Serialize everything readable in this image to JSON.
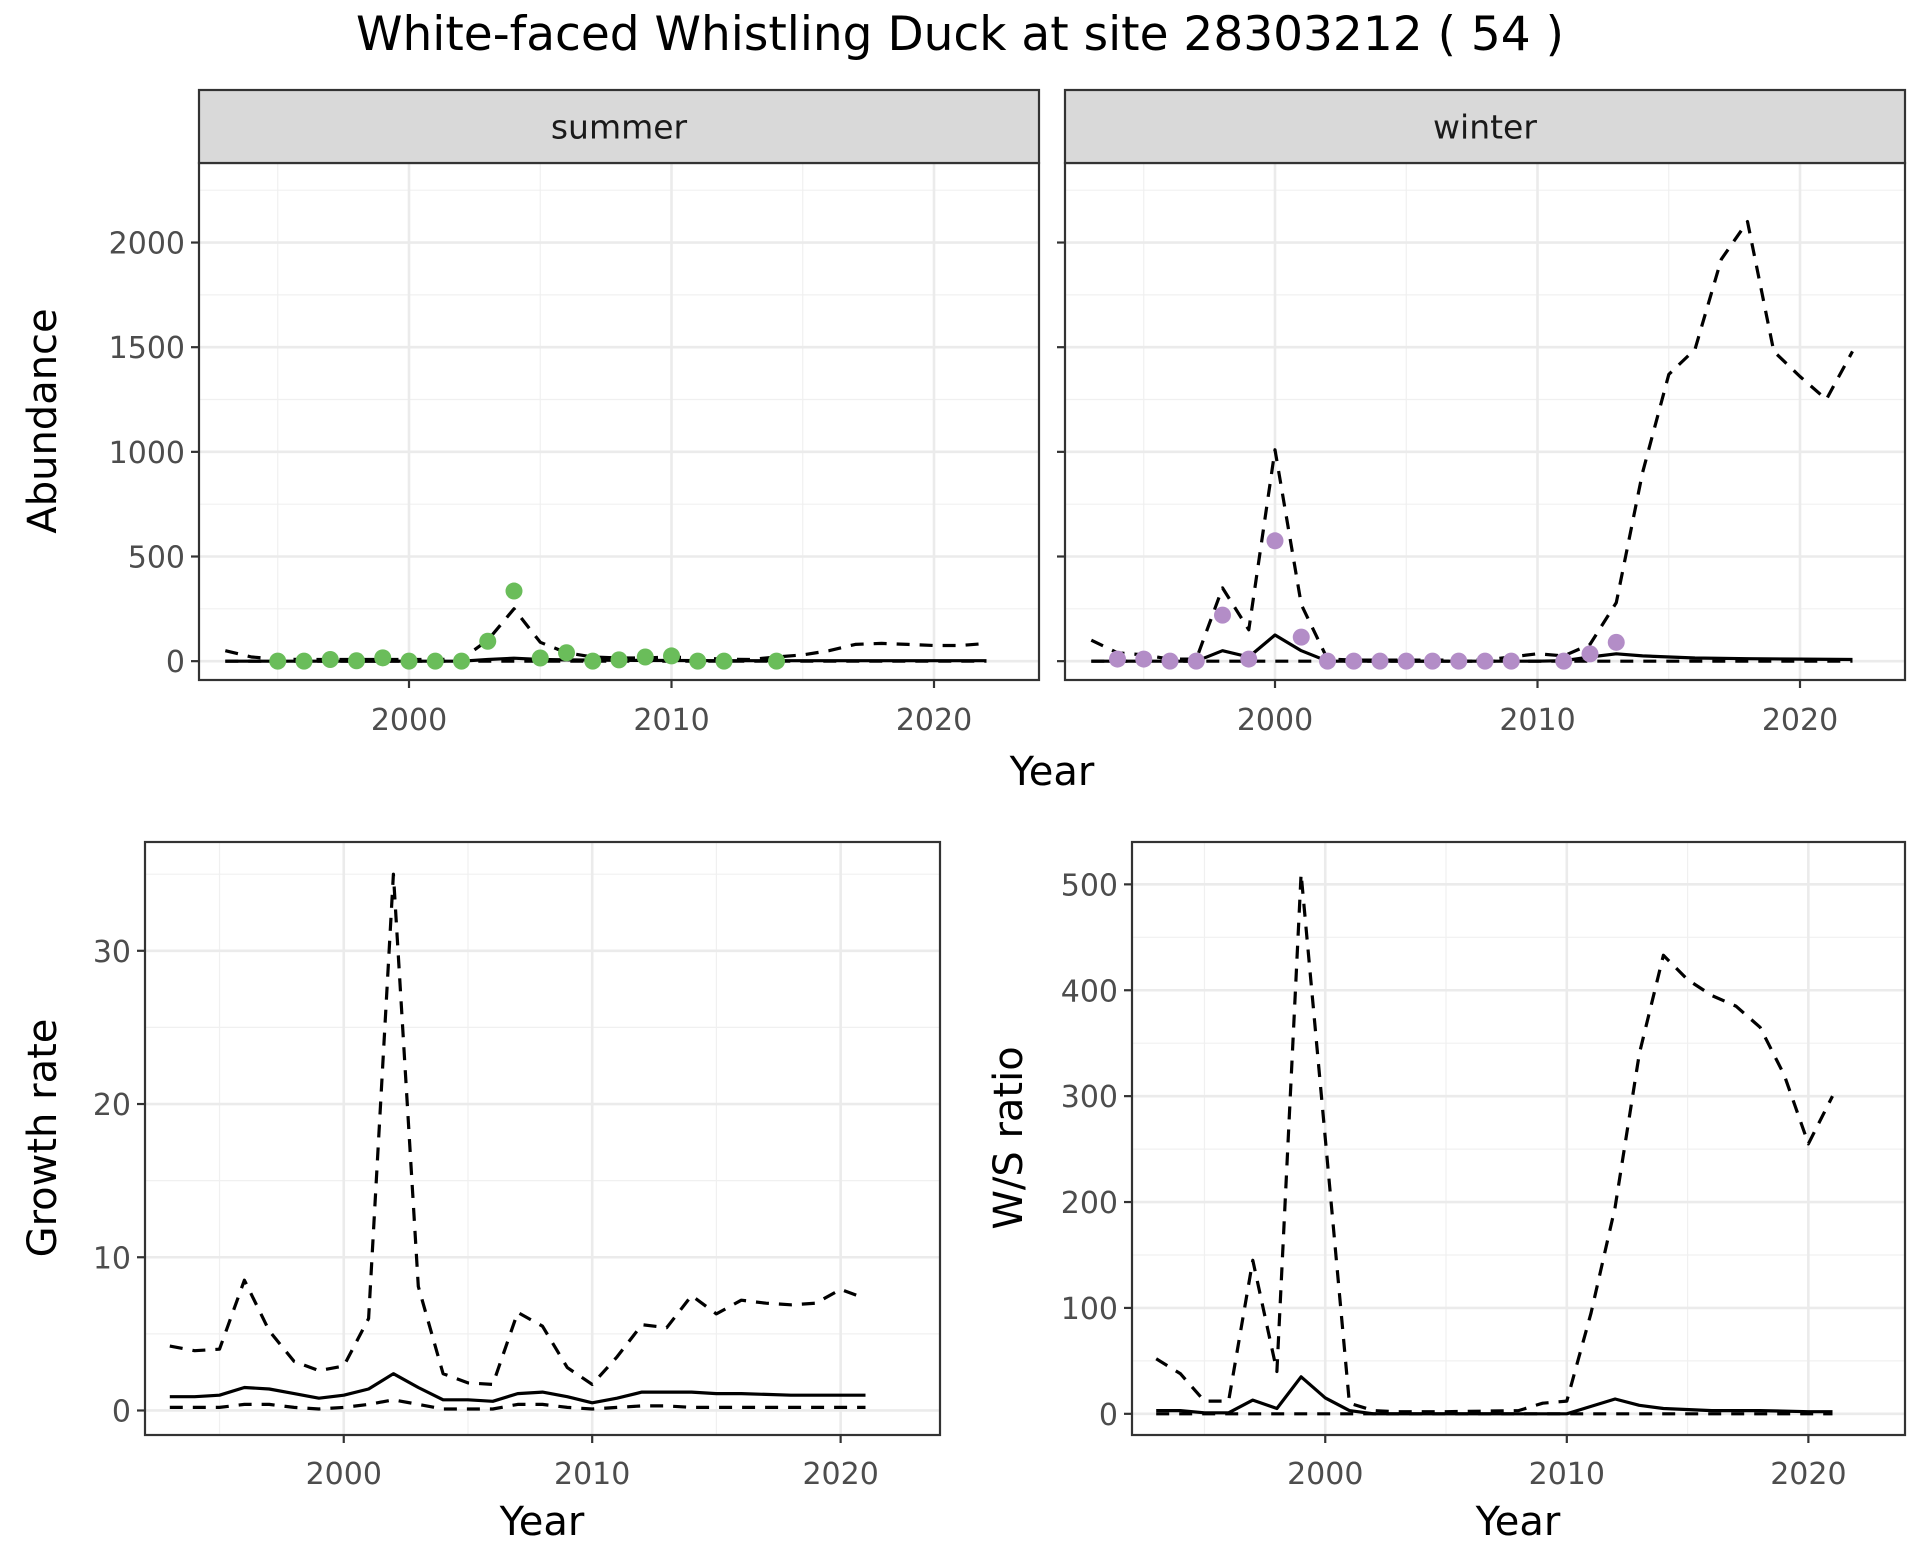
{
  "title": "White-faced Whistling Duck at site 28303212 ( 54 )",
  "chart_data": [
    {
      "type": "line",
      "panel": "summer",
      "xlabel": "Year",
      "ylabel": "Abundance",
      "xlim": [
        1992,
        2024
      ],
      "ylim": [
        -90,
        2380
      ],
      "x_ticks": [
        2000,
        2010,
        2020
      ],
      "y_ticks": [
        0,
        500,
        1000,
        1500,
        2000
      ],
      "grid": true,
      "point_color": "#6ABD5A",
      "series": [
        {
          "style": "solid",
          "x": [
            1993,
            1995,
            2000,
            2002,
            2003,
            2004,
            2005,
            2006,
            2008,
            2010,
            2012,
            2014,
            2016,
            2018,
            2020,
            2022
          ],
          "y": [
            0,
            0,
            0,
            0,
            8,
            14,
            8,
            6,
            4,
            3,
            2,
            2,
            2,
            2,
            2,
            2
          ]
        },
        {
          "style": "dashed",
          "x": [
            1993,
            1994,
            1995,
            1996,
            1997,
            1998,
            1999,
            2000,
            2001,
            2002,
            2003,
            2004,
            2005,
            2006,
            2007,
            2008,
            2009,
            2010,
            2011,
            2012,
            2013,
            2014,
            2015,
            2016,
            2017,
            2018,
            2019,
            2020,
            2021,
            2022
          ],
          "y": [
            50,
            20,
            10,
            8,
            8,
            8,
            8,
            8,
            8,
            10,
            100,
            250,
            90,
            40,
            20,
            15,
            15,
            20,
            15,
            10,
            8,
            20,
            30,
            50,
            80,
            85,
            80,
            75,
            75,
            85
          ]
        },
        {
          "style": "dashed",
          "x": [
            1993,
            2022
          ],
          "y": [
            0,
            0
          ]
        }
      ],
      "points": {
        "x": [
          1995,
          1996,
          1997,
          1998,
          1999,
          2000,
          2001,
          2002,
          2003,
          2004,
          2005,
          2006,
          2007,
          2008,
          2009,
          2010,
          2011,
          2012,
          2014
        ],
        "y": [
          0,
          0,
          8,
          2,
          16,
          0,
          0,
          0,
          95,
          335,
          15,
          40,
          0,
          6,
          20,
          25,
          0,
          0,
          0
        ]
      }
    },
    {
      "type": "line",
      "panel": "winter",
      "xlabel": "Year",
      "ylabel": "Abundance",
      "xlim": [
        1992,
        2024
      ],
      "ylim": [
        -90,
        2380
      ],
      "x_ticks": [
        2000,
        2010,
        2020
      ],
      "y_ticks": [
        0,
        500,
        1000,
        1500,
        2000
      ],
      "grid": true,
      "point_color": "#B38DC7",
      "series": [
        {
          "style": "solid",
          "x": [
            1993,
            1995,
            1996,
            1997,
            1998,
            1999,
            2000,
            2001,
            2002,
            2005,
            2010,
            2011,
            2012,
            2013,
            2014,
            2016,
            2018,
            2020,
            2022
          ],
          "y": [
            0,
            0,
            0,
            0,
            50,
            20,
            125,
            50,
            0,
            0,
            0,
            2,
            20,
            35,
            25,
            15,
            12,
            10,
            8
          ]
        },
        {
          "style": "dashed",
          "x": [
            1993,
            1994,
            1995,
            1996,
            1997,
            1998,
            1999,
            2000,
            2001,
            2002,
            2003,
            2005,
            2008,
            2010,
            2011,
            2012,
            2013,
            2014,
            2015,
            2016,
            2017,
            2018,
            2019,
            2020,
            2021,
            2022
          ],
          "y": [
            100,
            40,
            30,
            10,
            10,
            350,
            150,
            1010,
            270,
            10,
            5,
            5,
            5,
            35,
            25,
            80,
            280,
            900,
            1370,
            1490,
            1920,
            2100,
            1480,
            1360,
            1250,
            1480
          ]
        },
        {
          "style": "dashed",
          "x": [
            1993,
            2022
          ],
          "y": [
            0,
            0
          ]
        }
      ],
      "points": {
        "x": [
          1994,
          1995,
          1996,
          1997,
          1998,
          1999,
          2000,
          2001,
          2002,
          2003,
          2004,
          2005,
          2006,
          2007,
          2008,
          2009,
          2011,
          2012,
          2013
        ],
        "y": [
          10,
          10,
          0,
          0,
          220,
          10,
          575,
          115,
          0,
          0,
          0,
          0,
          0,
          0,
          0,
          0,
          0,
          35,
          90
        ]
      }
    },
    {
      "type": "line",
      "panel": "growth",
      "xlabel": "Year",
      "ylabel": "Growth rate",
      "xlim": [
        1992,
        2024
      ],
      "ylim": [
        -1.6,
        37.1
      ],
      "x_ticks": [
        2000,
        2010,
        2020
      ],
      "y_ticks": [
        0,
        10,
        20,
        30
      ],
      "grid": true,
      "series": [
        {
          "style": "solid",
          "x": [
            1993,
            1994,
            1995,
            1996,
            1997,
            1998,
            1999,
            2000,
            2001,
            2002,
            2003,
            2004,
            2005,
            2006,
            2007,
            2008,
            2009,
            2010,
            2011,
            2012,
            2013,
            2014,
            2015,
            2016,
            2017,
            2018,
            2019,
            2020,
            2021
          ],
          "y": [
            0.9,
            0.9,
            1.0,
            1.5,
            1.4,
            1.1,
            0.8,
            1.0,
            1.4,
            2.4,
            1.5,
            0.7,
            0.7,
            0.6,
            1.1,
            1.2,
            0.9,
            0.5,
            0.8,
            1.2,
            1.2,
            1.2,
            1.1,
            1.1,
            1.05,
            1.0,
            1.0,
            1.0,
            1.0
          ]
        },
        {
          "style": "dashed",
          "x": [
            1993,
            1994,
            1995,
            1996,
            1997,
            1998,
            1999,
            2000,
            2001,
            2002,
            2003,
            2004,
            2005,
            2006,
            2007,
            2008,
            2009,
            2010,
            2011,
            2012,
            2013,
            2014,
            2015,
            2016,
            2017,
            2018,
            2019,
            2020,
            2021
          ],
          "y": [
            4.2,
            3.9,
            4.0,
            8.5,
            5.2,
            3.2,
            2.6,
            2.9,
            6.0,
            35.0,
            8.1,
            2.4,
            1.8,
            1.7,
            6.4,
            5.5,
            2.8,
            1.7,
            3.5,
            5.6,
            5.4,
            7.5,
            6.3,
            7.2,
            7.0,
            6.9,
            7.0,
            7.9,
            7.3
          ]
        },
        {
          "style": "dashed",
          "x": [
            1993,
            1994,
            1995,
            1996,
            1997,
            1998,
            1999,
            2000,
            2001,
            2002,
            2003,
            2004,
            2005,
            2006,
            2007,
            2008,
            2009,
            2010,
            2011,
            2012,
            2013,
            2014,
            2015,
            2016,
            2017,
            2018,
            2019,
            2020,
            2021
          ],
          "y": [
            0.2,
            0.2,
            0.2,
            0.4,
            0.4,
            0.2,
            0.1,
            0.2,
            0.4,
            0.7,
            0.4,
            0.1,
            0.1,
            0.1,
            0.4,
            0.4,
            0.2,
            0.1,
            0.2,
            0.3,
            0.3,
            0.2,
            0.2,
            0.2,
            0.2,
            0.2,
            0.2,
            0.2,
            0.2
          ]
        }
      ]
    },
    {
      "type": "line",
      "panel": "ratio",
      "xlabel": "Year",
      "ylabel": "W/S ratio",
      "xlim": [
        1992,
        2024
      ],
      "ylim": [
        -20,
        540
      ],
      "x_ticks": [
        2000,
        2010,
        2020
      ],
      "y_ticks": [
        0,
        100,
        200,
        300,
        400,
        500
      ],
      "grid": true,
      "series": [
        {
          "style": "solid",
          "x": [
            1993,
            1994,
            1995,
            1996,
            1997,
            1998,
            1999,
            2000,
            2001,
            2002,
            2005,
            2010,
            2011,
            2012,
            2013,
            2014,
            2016,
            2018,
            2020,
            2021
          ],
          "y": [
            3,
            3,
            1,
            1,
            13,
            5,
            35,
            15,
            3,
            0,
            0,
            0,
            7,
            14,
            8,
            5,
            3,
            3,
            2,
            2
          ]
        },
        {
          "style": "dashed",
          "x": [
            1993,
            1994,
            1995,
            1996,
            1997,
            1998,
            1999,
            2000,
            2001,
            2002,
            2003,
            2005,
            2008,
            2009,
            2010,
            2011,
            2012,
            2013,
            2014,
            2015,
            2016,
            2017,
            2018,
            2019,
            2020,
            2021
          ],
          "y": [
            52,
            38,
            12,
            12,
            145,
            40,
            510,
            260,
            10,
            3,
            2,
            2,
            3,
            10,
            12,
            95,
            195,
            340,
            433,
            410,
            395,
            385,
            365,
            320,
            255,
            300
          ]
        },
        {
          "style": "dashed",
          "x": [
            1993,
            2021
          ],
          "y": [
            0,
            0
          ]
        }
      ]
    }
  ]
}
